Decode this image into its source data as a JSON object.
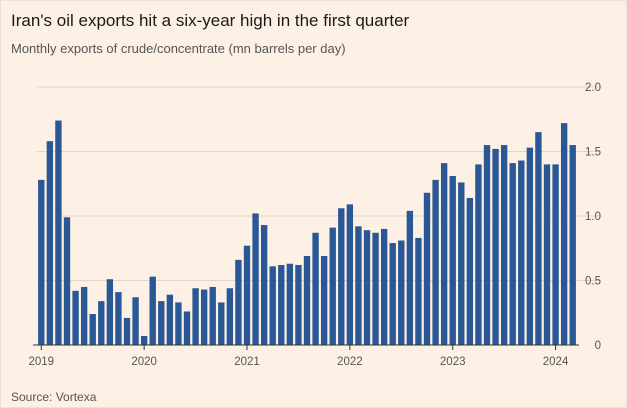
{
  "title": "Iran's oil exports hit a six-year high in the first quarter",
  "subtitle": "Monthly exports of crude/concentrate (mn barrels per day)",
  "source": "Source: Vortexa",
  "colors": {
    "background": "#fdf1e5",
    "bar": "#2a5796",
    "grid": "#e3d6c9",
    "axis": "#333333"
  },
  "chart_data": {
    "type": "bar",
    "title": "Iran's oil exports hit a six-year high in the first quarter",
    "subtitle": "Monthly exports of crude/concentrate (mn barrels per day)",
    "xlabel": "",
    "ylabel": "",
    "ylim": [
      0,
      2.0
    ],
    "y_ticks": [
      0,
      0.5,
      1.0,
      1.5,
      2.0
    ],
    "y_tick_labels": [
      "0",
      "0.5",
      "1.0",
      "1.5",
      "2.0"
    ],
    "y_axis_side": "right",
    "grid": true,
    "x_tick_labels": [
      {
        "label": "2019",
        "at": "2019-01"
      },
      {
        "label": "2020",
        "at": "2020-01"
      },
      {
        "label": "2021",
        "at": "2021-01"
      },
      {
        "label": "2022",
        "at": "2022-01"
      },
      {
        "label": "2023",
        "at": "2023-01"
      },
      {
        "label": "2024",
        "at": "2024-01"
      }
    ],
    "categories": [
      "2019-01",
      "2019-02",
      "2019-03",
      "2019-04",
      "2019-05",
      "2019-06",
      "2019-07",
      "2019-08",
      "2019-09",
      "2019-10",
      "2019-11",
      "2019-12",
      "2020-01",
      "2020-02",
      "2020-03",
      "2020-04",
      "2020-05",
      "2020-06",
      "2020-07",
      "2020-08",
      "2020-09",
      "2020-10",
      "2020-11",
      "2020-12",
      "2021-01",
      "2021-02",
      "2021-03",
      "2021-04",
      "2021-05",
      "2021-06",
      "2021-07",
      "2021-08",
      "2021-09",
      "2021-10",
      "2021-11",
      "2021-12",
      "2022-01",
      "2022-02",
      "2022-03",
      "2022-04",
      "2022-05",
      "2022-06",
      "2022-07",
      "2022-08",
      "2022-09",
      "2022-10",
      "2022-11",
      "2022-12",
      "2023-01",
      "2023-02",
      "2023-03",
      "2023-04",
      "2023-05",
      "2023-06",
      "2023-07",
      "2023-08",
      "2023-09",
      "2023-10",
      "2023-11",
      "2023-12",
      "2024-01",
      "2024-02",
      "2024-03"
    ],
    "values": [
      1.28,
      1.58,
      1.74,
      0.99,
      0.42,
      0.45,
      0.24,
      0.34,
      0.51,
      0.41,
      0.21,
      0.37,
      0.07,
      0.53,
      0.34,
      0.39,
      0.33,
      0.26,
      0.44,
      0.43,
      0.45,
      0.33,
      0.44,
      0.66,
      0.77,
      1.02,
      0.93,
      0.61,
      0.62,
      0.63,
      0.62,
      0.69,
      0.87,
      0.69,
      0.91,
      1.06,
      1.09,
      0.92,
      0.89,
      0.87,
      0.9,
      0.79,
      0.81,
      1.04,
      0.83,
      1.18,
      1.28,
      1.41,
      1.31,
      1.26,
      1.14,
      1.4,
      1.55,
      1.52,
      1.55,
      1.41,
      1.43,
      1.53,
      1.65,
      1.4,
      1.4,
      1.72,
      1.55
    ]
  }
}
